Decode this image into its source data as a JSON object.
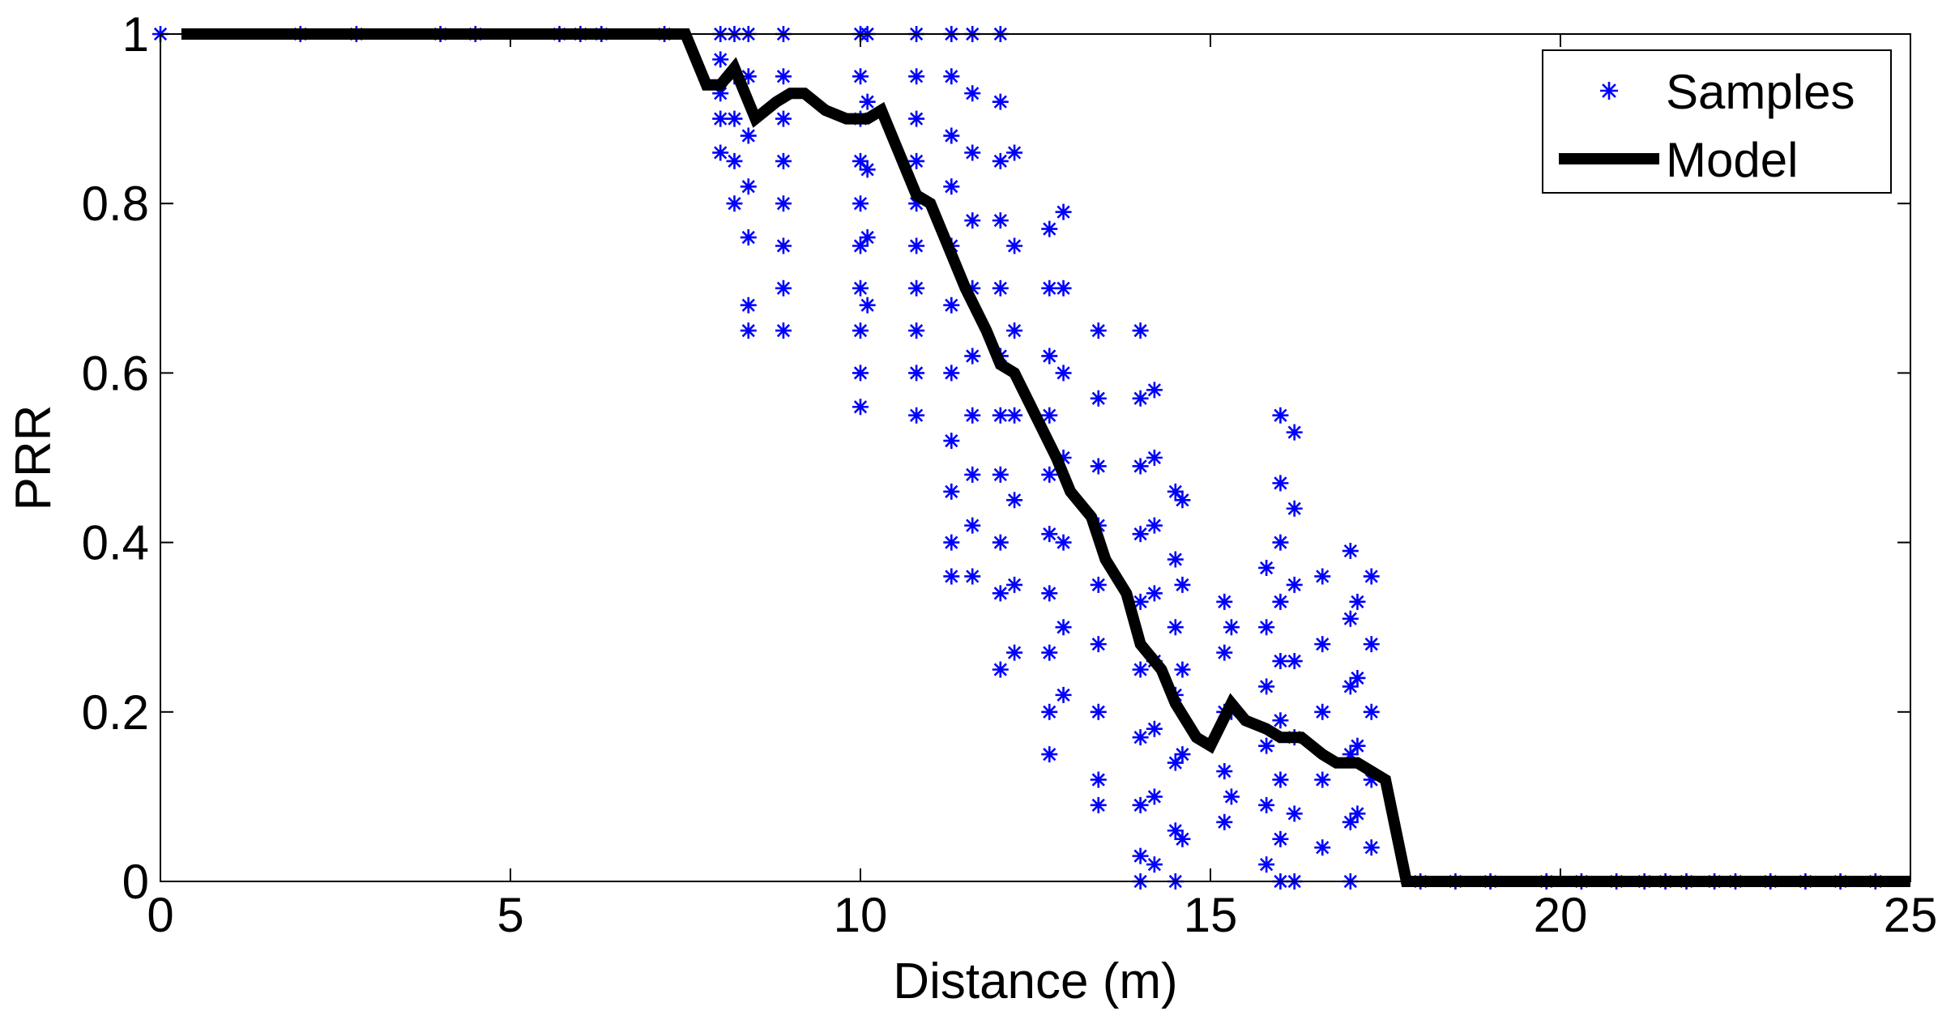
{
  "chart_data": {
    "type": "scatter",
    "xlabel": "Distance (m)",
    "ylabel": "PRR",
    "xlim": [
      0,
      25
    ],
    "ylim": [
      0,
      1
    ],
    "x_ticks": [
      0,
      5,
      10,
      15,
      20,
      25
    ],
    "y_ticks": [
      0,
      0.2,
      0.4,
      0.6,
      0.8,
      1
    ],
    "y_tick_labels": [
      "0",
      "0.2",
      "0.4",
      "0.6",
      "0.8",
      "1"
    ],
    "grid": false,
    "legend_position": "top-right",
    "series": [
      {
        "name": "Samples",
        "kind": "scatter",
        "marker": "asterisk",
        "color": "#0000ff",
        "points": [
          [
            0.0,
            1
          ],
          [
            2.0,
            1
          ],
          [
            2.8,
            1
          ],
          [
            4.0,
            1
          ],
          [
            4.5,
            1
          ],
          [
            5.7,
            1
          ],
          [
            6.0,
            1
          ],
          [
            6.3,
            1
          ],
          [
            7.2,
            1
          ],
          [
            8.0,
            1.0
          ],
          [
            8.0,
            0.97
          ],
          [
            8.0,
            0.93
          ],
          [
            8.0,
            0.9
          ],
          [
            8.0,
            0.86
          ],
          [
            8.2,
            1.0
          ],
          [
            8.2,
            0.95
          ],
          [
            8.2,
            0.9
          ],
          [
            8.2,
            0.85
          ],
          [
            8.2,
            0.8
          ],
          [
            8.4,
            1.0
          ],
          [
            8.4,
            0.95
          ],
          [
            8.4,
            0.88
          ],
          [
            8.4,
            0.82
          ],
          [
            8.4,
            0.76
          ],
          [
            8.4,
            0.68
          ],
          [
            8.4,
            0.65
          ],
          [
            8.9,
            1.0
          ],
          [
            8.9,
            0.95
          ],
          [
            8.9,
            0.9
          ],
          [
            8.9,
            0.85
          ],
          [
            8.9,
            0.8
          ],
          [
            8.9,
            0.75
          ],
          [
            8.9,
            0.7
          ],
          [
            8.9,
            0.65
          ],
          [
            10.0,
            1.0
          ],
          [
            10.0,
            0.95
          ],
          [
            10.0,
            0.9
          ],
          [
            10.0,
            0.85
          ],
          [
            10.0,
            0.8
          ],
          [
            10.0,
            0.75
          ],
          [
            10.0,
            0.7
          ],
          [
            10.0,
            0.65
          ],
          [
            10.0,
            0.6
          ],
          [
            10.0,
            0.56
          ],
          [
            10.1,
            1.0
          ],
          [
            10.1,
            0.92
          ],
          [
            10.1,
            0.84
          ],
          [
            10.1,
            0.76
          ],
          [
            10.1,
            0.68
          ],
          [
            10.8,
            1.0
          ],
          [
            10.8,
            0.95
          ],
          [
            10.8,
            0.9
          ],
          [
            10.8,
            0.85
          ],
          [
            10.8,
            0.8
          ],
          [
            10.8,
            0.75
          ],
          [
            10.8,
            0.7
          ],
          [
            10.8,
            0.65
          ],
          [
            10.8,
            0.6
          ],
          [
            10.8,
            0.55
          ],
          [
            11.3,
            1.0
          ],
          [
            11.3,
            0.95
          ],
          [
            11.3,
            0.88
          ],
          [
            11.3,
            0.82
          ],
          [
            11.3,
            0.75
          ],
          [
            11.3,
            0.68
          ],
          [
            11.3,
            0.6
          ],
          [
            11.3,
            0.52
          ],
          [
            11.3,
            0.46
          ],
          [
            11.3,
            0.4
          ],
          [
            11.3,
            0.36
          ],
          [
            11.6,
            1.0
          ],
          [
            11.6,
            0.93
          ],
          [
            11.6,
            0.86
          ],
          [
            11.6,
            0.78
          ],
          [
            11.6,
            0.7
          ],
          [
            11.6,
            0.62
          ],
          [
            11.6,
            0.55
          ],
          [
            11.6,
            0.48
          ],
          [
            11.6,
            0.42
          ],
          [
            11.6,
            0.36
          ],
          [
            12.0,
            1.0
          ],
          [
            12.0,
            0.92
          ],
          [
            12.0,
            0.85
          ],
          [
            12.0,
            0.78
          ],
          [
            12.0,
            0.7
          ],
          [
            12.0,
            0.62
          ],
          [
            12.0,
            0.55
          ],
          [
            12.0,
            0.48
          ],
          [
            12.0,
            0.4
          ],
          [
            12.0,
            0.34
          ],
          [
            12.0,
            0.25
          ],
          [
            12.2,
            0.86
          ],
          [
            12.2,
            0.75
          ],
          [
            12.2,
            0.65
          ],
          [
            12.2,
            0.55
          ],
          [
            12.2,
            0.45
          ],
          [
            12.2,
            0.35
          ],
          [
            12.2,
            0.27
          ],
          [
            12.7,
            0.77
          ],
          [
            12.7,
            0.7
          ],
          [
            12.7,
            0.62
          ],
          [
            12.7,
            0.55
          ],
          [
            12.7,
            0.48
          ],
          [
            12.7,
            0.41
          ],
          [
            12.7,
            0.34
          ],
          [
            12.7,
            0.27
          ],
          [
            12.7,
            0.2
          ],
          [
            12.7,
            0.15
          ],
          [
            12.9,
            0.79
          ],
          [
            12.9,
            0.7
          ],
          [
            12.9,
            0.6
          ],
          [
            12.9,
            0.5
          ],
          [
            12.9,
            0.4
          ],
          [
            12.9,
            0.3
          ],
          [
            12.9,
            0.22
          ],
          [
            13.4,
            0.65
          ],
          [
            13.4,
            0.57
          ],
          [
            13.4,
            0.49
          ],
          [
            13.4,
            0.42
          ],
          [
            13.4,
            0.35
          ],
          [
            13.4,
            0.28
          ],
          [
            13.4,
            0.2
          ],
          [
            13.4,
            0.12
          ],
          [
            13.4,
            0.09
          ],
          [
            14.0,
            0.65
          ],
          [
            14.0,
            0.57
          ],
          [
            14.0,
            0.49
          ],
          [
            14.0,
            0.41
          ],
          [
            14.0,
            0.33
          ],
          [
            14.0,
            0.25
          ],
          [
            14.0,
            0.17
          ],
          [
            14.0,
            0.09
          ],
          [
            14.0,
            0.03
          ],
          [
            14.0,
            0.0
          ],
          [
            14.2,
            0.58
          ],
          [
            14.2,
            0.5
          ],
          [
            14.2,
            0.42
          ],
          [
            14.2,
            0.34
          ],
          [
            14.2,
            0.26
          ],
          [
            14.2,
            0.18
          ],
          [
            14.2,
            0.1
          ],
          [
            14.2,
            0.02
          ],
          [
            14.5,
            0.46
          ],
          [
            14.5,
            0.38
          ],
          [
            14.5,
            0.3
          ],
          [
            14.5,
            0.22
          ],
          [
            14.5,
            0.14
          ],
          [
            14.5,
            0.06
          ],
          [
            14.5,
            0.0
          ],
          [
            14.6,
            0.45
          ],
          [
            14.6,
            0.35
          ],
          [
            14.6,
            0.25
          ],
          [
            14.6,
            0.15
          ],
          [
            14.6,
            0.05
          ],
          [
            15.2,
            0.33
          ],
          [
            15.2,
            0.27
          ],
          [
            15.2,
            0.2
          ],
          [
            15.2,
            0.13
          ],
          [
            15.2,
            0.07
          ],
          [
            15.3,
            0.3
          ],
          [
            15.3,
            0.2
          ],
          [
            15.3,
            0.1
          ],
          [
            15.8,
            0.37
          ],
          [
            15.8,
            0.3
          ],
          [
            15.8,
            0.23
          ],
          [
            15.8,
            0.16
          ],
          [
            15.8,
            0.09
          ],
          [
            15.8,
            0.02
          ],
          [
            16.0,
            0.55
          ],
          [
            16.0,
            0.47
          ],
          [
            16.0,
            0.4
          ],
          [
            16.0,
            0.33
          ],
          [
            16.0,
            0.26
          ],
          [
            16.0,
            0.19
          ],
          [
            16.0,
            0.12
          ],
          [
            16.0,
            0.05
          ],
          [
            16.0,
            0.0
          ],
          [
            16.2,
            0.53
          ],
          [
            16.2,
            0.44
          ],
          [
            16.2,
            0.35
          ],
          [
            16.2,
            0.26
          ],
          [
            16.2,
            0.17
          ],
          [
            16.2,
            0.08
          ],
          [
            16.2,
            0.0
          ],
          [
            16.6,
            0.36
          ],
          [
            16.6,
            0.28
          ],
          [
            16.6,
            0.2
          ],
          [
            16.6,
            0.12
          ],
          [
            16.6,
            0.04
          ],
          [
            17.0,
            0.39
          ],
          [
            17.0,
            0.31
          ],
          [
            17.0,
            0.23
          ],
          [
            17.0,
            0.15
          ],
          [
            17.0,
            0.07
          ],
          [
            17.0,
            0.0
          ],
          [
            17.1,
            0.33
          ],
          [
            17.1,
            0.24
          ],
          [
            17.1,
            0.16
          ],
          [
            17.1,
            0.08
          ],
          [
            17.3,
            0.36
          ],
          [
            17.3,
            0.28
          ],
          [
            17.3,
            0.2
          ],
          [
            17.3,
            0.12
          ],
          [
            17.3,
            0.04
          ],
          [
            18.0,
            0.0
          ],
          [
            18.5,
            0.0
          ],
          [
            19.0,
            0.0
          ],
          [
            19.8,
            0.0
          ],
          [
            20.3,
            0.0
          ],
          [
            20.8,
            0.0
          ],
          [
            21.2,
            0.0
          ],
          [
            21.5,
            0.0
          ],
          [
            21.8,
            0.0
          ],
          [
            22.2,
            0.0
          ],
          [
            22.5,
            0.0
          ],
          [
            23.0,
            0.0
          ],
          [
            23.5,
            0.0
          ],
          [
            24.0,
            0.0
          ],
          [
            24.5,
            0.0
          ]
        ]
      },
      {
        "name": "Model",
        "kind": "line",
        "color": "#000000",
        "points": [
          [
            0.3,
            1
          ],
          [
            7.5,
            1
          ],
          [
            7.8,
            0.94
          ],
          [
            8.0,
            0.94
          ],
          [
            8.2,
            0.96
          ],
          [
            8.5,
            0.9
          ],
          [
            8.8,
            0.92
          ],
          [
            9.0,
            0.93
          ],
          [
            9.2,
            0.93
          ],
          [
            9.5,
            0.91
          ],
          [
            9.8,
            0.9
          ],
          [
            10.1,
            0.9
          ],
          [
            10.3,
            0.91
          ],
          [
            10.5,
            0.87
          ],
          [
            10.8,
            0.81
          ],
          [
            11.0,
            0.8
          ],
          [
            11.2,
            0.76
          ],
          [
            11.5,
            0.7
          ],
          [
            11.8,
            0.65
          ],
          [
            12.0,
            0.61
          ],
          [
            12.2,
            0.6
          ],
          [
            12.5,
            0.55
          ],
          [
            12.8,
            0.5
          ],
          [
            13.0,
            0.46
          ],
          [
            13.3,
            0.43
          ],
          [
            13.5,
            0.38
          ],
          [
            13.8,
            0.34
          ],
          [
            14.0,
            0.28
          ],
          [
            14.3,
            0.25
          ],
          [
            14.5,
            0.21
          ],
          [
            14.8,
            0.17
          ],
          [
            15.0,
            0.16
          ],
          [
            15.3,
            0.21
          ],
          [
            15.5,
            0.19
          ],
          [
            15.8,
            0.18
          ],
          [
            16.0,
            0.17
          ],
          [
            16.3,
            0.17
          ],
          [
            16.6,
            0.15
          ],
          [
            16.8,
            0.14
          ],
          [
            17.1,
            0.14
          ],
          [
            17.5,
            0.12
          ],
          [
            17.8,
            0.0
          ],
          [
            25.0,
            0.0
          ]
        ]
      }
    ]
  }
}
